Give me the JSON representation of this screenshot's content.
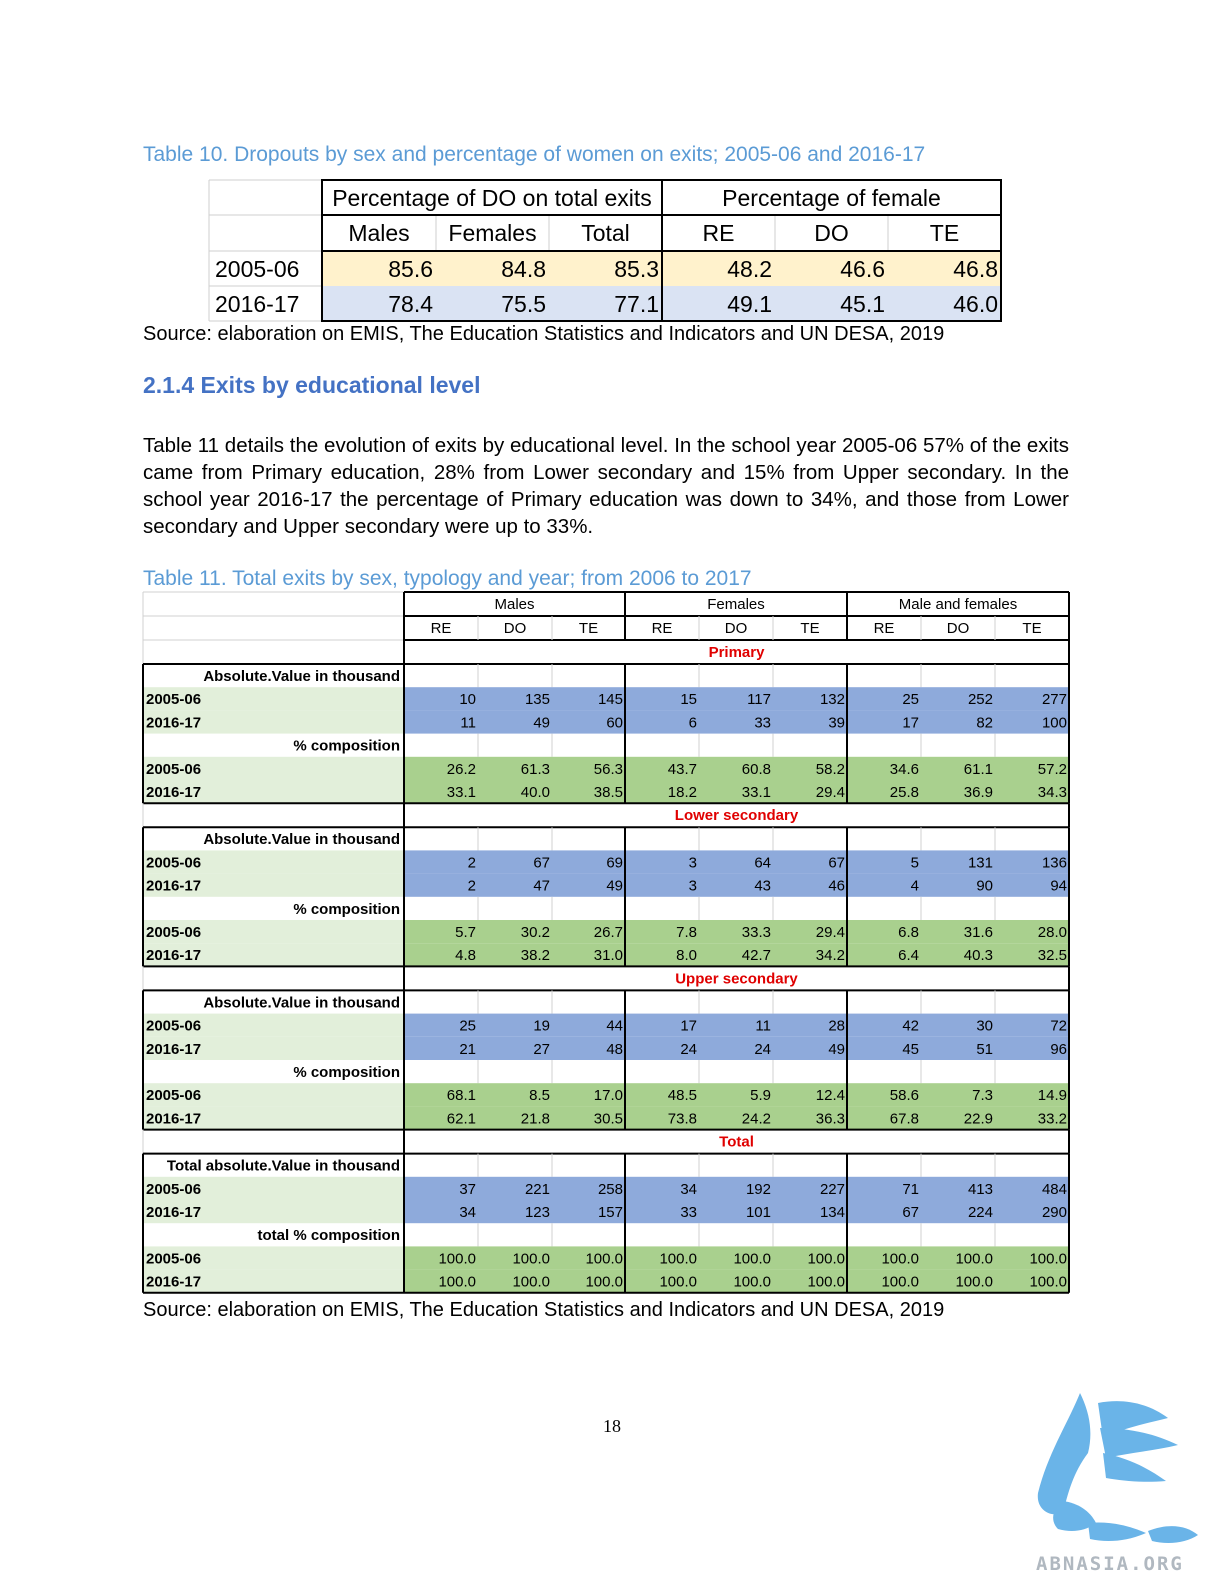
{
  "table10": {
    "caption": "Table 10.  Dropouts by sex and percentage of women on exits; 2005-06 and 2016-17",
    "group_headers": [
      "Percentage of DO on total exits",
      "Percentage of female"
    ],
    "sub_headers": [
      "Males",
      "Females",
      "Total",
      "RE",
      "DO",
      "TE"
    ],
    "rows": [
      {
        "year": "2005-06",
        "values": [
          "85.6",
          "84.8",
          "85.3",
          "48.2",
          "46.6",
          "46.8"
        ]
      },
      {
        "year": "2016-17",
        "values": [
          "78.4",
          "75.5",
          "77.1",
          "49.1",
          "45.1",
          "46.0"
        ]
      }
    ],
    "source": "Source: elaboration on EMIS, The Education Statistics and Indicators and UN DESA, 2019",
    "colors": {
      "row1": "#fff2cc",
      "row2": "#dae3f3"
    }
  },
  "section": {
    "heading": "2.1.4 Exits by educational level",
    "paragraph": "Table 11 details the evolution of exits by educational level. In the school year 2005-06 57% of the exits came from Primary education, 28% from Lower secondary and 15% from Upper secondary. In the school year 2016-17 the percentage of Primary education was down to 34%, and those from Lower secondary and Upper secondary were up to 33%."
  },
  "table11": {
    "caption": "Table 11. Total exits by sex, typology and year; from 2006 to 2017",
    "group_headers": [
      "Males",
      "Females",
      "Male and females"
    ],
    "sub_headers": [
      "RE",
      "DO",
      "TE",
      "RE",
      "DO",
      "TE",
      "RE",
      "DO",
      "TE"
    ],
    "colors": {
      "section_title": "#e00000",
      "abs": "#8eaadb",
      "pct": "#a9d08e",
      "label_bg": "#e2efda"
    },
    "sections": [
      {
        "title": "Primary",
        "abs_label": "Absolute.Value in thousand",
        "pct_label": "% composition",
        "abs_rows": [
          {
            "year": "2005-06",
            "values": [
              "10",
              "135",
              "145",
              "15",
              "117",
              "132",
              "25",
              "252",
              "277"
            ]
          },
          {
            "year": "2016-17",
            "values": [
              "11",
              "49",
              "60",
              "6",
              "33",
              "39",
              "17",
              "82",
              "100"
            ]
          }
        ],
        "pct_rows": [
          {
            "year": "2005-06",
            "values": [
              "26.2",
              "61.3",
              "56.3",
              "43.7",
              "60.8",
              "58.2",
              "34.6",
              "61.1",
              "57.2"
            ]
          },
          {
            "year": "2016-17",
            "values": [
              "33.1",
              "40.0",
              "38.5",
              "18.2",
              "33.1",
              "29.4",
              "25.8",
              "36.9",
              "34.3"
            ]
          }
        ]
      },
      {
        "title": "Lower secondary",
        "abs_label": "Absolute.Value in thousand",
        "pct_label": "% composition",
        "abs_rows": [
          {
            "year": "2005-06",
            "values": [
              "2",
              "67",
              "69",
              "3",
              "64",
              "67",
              "5",
              "131",
              "136"
            ]
          },
          {
            "year": "2016-17",
            "values": [
              "2",
              "47",
              "49",
              "3",
              "43",
              "46",
              "4",
              "90",
              "94"
            ]
          }
        ],
        "pct_rows": [
          {
            "year": "2005-06",
            "values": [
              "5.7",
              "30.2",
              "26.7",
              "7.8",
              "33.3",
              "29.4",
              "6.8",
              "31.6",
              "28.0"
            ]
          },
          {
            "year": "2016-17",
            "values": [
              "4.8",
              "38.2",
              "31.0",
              "8.0",
              "42.7",
              "34.2",
              "6.4",
              "40.3",
              "32.5"
            ]
          }
        ]
      },
      {
        "title": "Upper secondary",
        "abs_label": "Absolute.Value in thousand",
        "pct_label": "% composition",
        "abs_rows": [
          {
            "year": "2005-06",
            "values": [
              "25",
              "19",
              "44",
              "17",
              "11",
              "28",
              "42",
              "30",
              "72"
            ]
          },
          {
            "year": "2016-17",
            "values": [
              "21",
              "27",
              "48",
              "24",
              "24",
              "49",
              "45",
              "51",
              "96"
            ]
          }
        ],
        "pct_rows": [
          {
            "year": "2005-06",
            "values": [
              "68.1",
              "8.5",
              "17.0",
              "48.5",
              "5.9",
              "12.4",
              "58.6",
              "7.3",
              "14.9"
            ]
          },
          {
            "year": "2016-17",
            "values": [
              "62.1",
              "21.8",
              "30.5",
              "73.8",
              "24.2",
              "36.3",
              "67.8",
              "22.9",
              "33.2"
            ]
          }
        ]
      },
      {
        "title": "Total",
        "abs_label": "Total absolute.Value in thousand",
        "pct_label": "total % composition",
        "abs_rows": [
          {
            "year": "2005-06",
            "values": [
              "37",
              "221",
              "258",
              "34",
              "192",
              "227",
              "71",
              "413",
              "484"
            ]
          },
          {
            "year": "2016-17",
            "values": [
              "34",
              "123",
              "157",
              "33",
              "101",
              "134",
              "67",
              "224",
              "290"
            ]
          }
        ],
        "pct_rows": [
          {
            "year": "2005-06",
            "values": [
              "100.0",
              "100.0",
              "100.0",
              "100.0",
              "100.0",
              "100.0",
              "100.0",
              "100.0",
              "100.0"
            ]
          },
          {
            "year": "2016-17",
            "values": [
              "100.0",
              "100.0",
              "100.0",
              "100.0",
              "100.0",
              "100.0",
              "100.0",
              "100.0",
              "100.0"
            ]
          }
        ]
      }
    ],
    "source": "Source: elaboration on EMIS, The Education Statistics and Indicators and UN DESA, 2019"
  },
  "footer": {
    "page_number": "18",
    "logo_text": "ABNASIA.ORG",
    "logo_color": "#6ab4e8"
  }
}
